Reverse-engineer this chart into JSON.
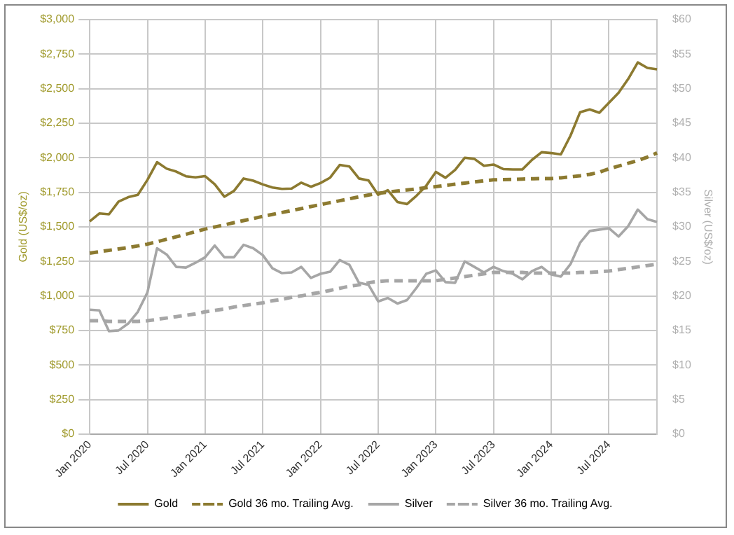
{
  "chart_data": {
    "type": "line",
    "ylabel": "Gold (US$/oz)",
    "y2label": "Silver (US$/oz)",
    "categories": [
      "Jan 2020",
      null,
      null,
      null,
      null,
      null,
      "Jul 2020",
      null,
      null,
      null,
      null,
      null,
      "Jan 2021",
      null,
      null,
      null,
      null,
      null,
      "Jul 2021",
      null,
      null,
      null,
      null,
      null,
      "Jan 2022",
      null,
      null,
      null,
      null,
      null,
      "Jul 2022",
      null,
      null,
      null,
      null,
      null,
      "Jan 2023",
      null,
      null,
      null,
      null,
      null,
      "Jul 2023",
      null,
      null,
      null,
      null,
      null,
      "Jan 2024",
      null,
      null,
      null,
      null,
      null,
      "Jul 2024",
      null,
      null,
      null,
      null,
      null
    ],
    "series": [
      {
        "name": "Gold",
        "color": "#8c7a30",
        "line_style": "solid",
        "values": [
          1540,
          1597,
          1591,
          1683,
          1715,
          1732,
          1840,
          1968,
          1921,
          1900,
          1866,
          1858,
          1867,
          1808,
          1718,
          1760,
          1850,
          1834,
          1807,
          1785,
          1775,
          1777,
          1820,
          1790,
          1817,
          1856,
          1948,
          1937,
          1850,
          1836,
          1732,
          1765,
          1680,
          1665,
          1726,
          1798,
          1898,
          1855,
          1912,
          2000,
          1992,
          1942,
          1951,
          1918,
          1915,
          1916,
          1985,
          2040,
          2034,
          2024,
          2160,
          2330,
          2350,
          2326,
          2398,
          2470,
          2570,
          2690,
          2650,
          2640
        ]
      },
      {
        "name": "Gold 36 mo. Trailing Avg.",
        "color": "#8c7a30",
        "line_style": "dashed",
        "values": [
          1310,
          1320,
          1330,
          1340,
          1350,
          1362,
          1375,
          1392,
          1410,
          1428,
          1446,
          1465,
          1484,
          1499,
          1514,
          1530,
          1545,
          1560,
          1576,
          1590,
          1604,
          1618,
          1632,
          1647,
          1661,
          1675,
          1689,
          1703,
          1717,
          1730,
          1743,
          1751,
          1759,
          1767,
          1775,
          1783,
          1791,
          1800,
          1809,
          1817,
          1825,
          1833,
          1840,
          1842,
          1844,
          1846,
          1848,
          1850,
          1850,
          1855,
          1862,
          1870,
          1880,
          1895,
          1920,
          1940,
          1960,
          1980,
          2005,
          2035
        ]
      },
      {
        "name": "Silver",
        "color": "#a6a6a6",
        "line_style": "solid",
        "axis": "y2",
        "values": [
          18.0,
          17.9,
          14.9,
          15.0,
          16.0,
          17.7,
          20.5,
          26.9,
          26.0,
          24.2,
          24.1,
          24.8,
          25.6,
          27.3,
          25.6,
          25.6,
          27.4,
          26.9,
          25.9,
          24.0,
          23.3,
          23.4,
          24.2,
          22.6,
          23.2,
          23.5,
          25.2,
          24.5,
          21.9,
          21.6,
          19.2,
          19.7,
          18.9,
          19.4,
          21.2,
          23.2,
          23.7,
          22.0,
          21.9,
          25.0,
          24.2,
          23.4,
          24.2,
          23.6,
          23.2,
          22.4,
          23.6,
          24.2,
          23.1,
          22.8,
          24.6,
          27.7,
          29.4,
          29.6,
          29.8,
          28.6,
          30.1,
          32.5,
          31.1,
          30.7
        ]
      },
      {
        "name": "Silver 36 mo. Trailing Avg.",
        "color": "#a6a6a6",
        "line_style": "dashed",
        "axis": "y2",
        "values": [
          16.4,
          16.4,
          16.3,
          16.3,
          16.3,
          16.3,
          16.4,
          16.6,
          16.8,
          17.0,
          17.2,
          17.4,
          17.7,
          17.9,
          18.1,
          18.4,
          18.6,
          18.8,
          19.0,
          19.3,
          19.5,
          19.8,
          20.0,
          20.3,
          20.5,
          20.8,
          21.1,
          21.4,
          21.6,
          21.9,
          22.1,
          22.2,
          22.2,
          22.2,
          22.2,
          22.2,
          22.2,
          22.4,
          22.6,
          22.8,
          23.0,
          23.2,
          23.4,
          23.4,
          23.4,
          23.4,
          23.3,
          23.3,
          23.3,
          23.3,
          23.3,
          23.4,
          23.4,
          23.5,
          23.6,
          23.8,
          24.0,
          24.2,
          24.4,
          24.6
        ]
      }
    ],
    "ylim": [
      0,
      3000
    ],
    "yticks": [
      {
        "value": 0,
        "label": "$0"
      },
      {
        "value": 250,
        "label": "$250"
      },
      {
        "value": 500,
        "label": "$500"
      },
      {
        "value": 750,
        "label": "$750"
      },
      {
        "value": 1000,
        "label": "$1,000"
      },
      {
        "value": 1250,
        "label": "$1,250"
      },
      {
        "value": 1500,
        "label": "$1,500"
      },
      {
        "value": 1750,
        "label": "$1,750"
      },
      {
        "value": 2000,
        "label": "$2,000"
      },
      {
        "value": 2250,
        "label": "$2,250"
      },
      {
        "value": 2500,
        "label": "$2,500"
      },
      {
        "value": 2750,
        "label": "$2,750"
      },
      {
        "value": 3000,
        "label": "$3,000"
      }
    ],
    "y2lim": [
      0,
      60
    ],
    "y2ticks": [
      {
        "value": 0,
        "label": "$0"
      },
      {
        "value": 5,
        "label": "$5"
      },
      {
        "value": 10,
        "label": "$10"
      },
      {
        "value": 15,
        "label": "$15"
      },
      {
        "value": 20,
        "label": "$20"
      },
      {
        "value": 25,
        "label": "$25"
      },
      {
        "value": 30,
        "label": "$30"
      },
      {
        "value": 35,
        "label": "$35"
      },
      {
        "value": 40,
        "label": "$40"
      },
      {
        "value": 45,
        "label": "$45"
      },
      {
        "value": 50,
        "label": "$50"
      },
      {
        "value": 55,
        "label": "$55"
      },
      {
        "value": 60,
        "label": "$60"
      }
    ],
    "grid": true,
    "legend": "bottom",
    "marker": "none"
  }
}
